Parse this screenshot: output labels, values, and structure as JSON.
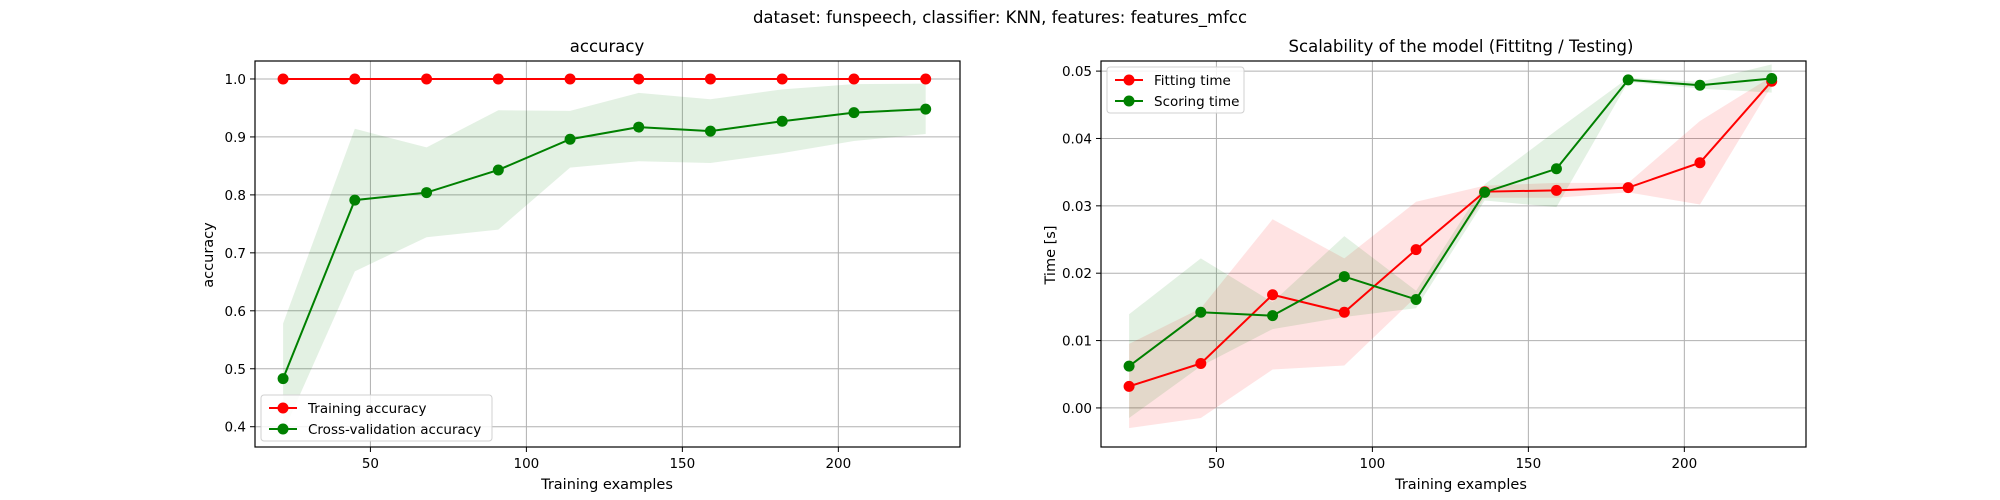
{
  "figure": {
    "suptitle": "dataset: funspeech, classifier: KNN, features: features_mfcc"
  },
  "chart_data": [
    {
      "type": "line",
      "title": "accuracy",
      "xlabel": "Training examples",
      "ylabel": "accuracy",
      "xlim": [
        13,
        239
      ],
      "ylim": [
        0.365,
        1.031
      ],
      "xticks": [
        50,
        100,
        150,
        200
      ],
      "yticks": [
        0.4,
        0.5,
        0.6,
        0.7,
        0.8,
        0.9,
        1.0
      ],
      "ytick_labels": [
        "0.4",
        "0.5",
        "0.6",
        "0.7",
        "0.8",
        "0.9",
        "1.0"
      ],
      "grid": true,
      "legend_position": "lower-left",
      "x": [
        22,
        45,
        68,
        91,
        114,
        136,
        159,
        182,
        205,
        228
      ],
      "series": [
        {
          "name": "Training accuracy",
          "color": "#ff0000",
          "values": [
            1.0,
            1.0,
            1.0,
            1.0,
            1.0,
            1.0,
            1.0,
            1.0,
            1.0,
            1.0
          ],
          "band_lower": [
            1.0,
            1.0,
            1.0,
            1.0,
            1.0,
            1.0,
            1.0,
            1.0,
            1.0,
            1.0
          ],
          "band_upper": [
            1.0,
            1.0,
            1.0,
            1.0,
            1.0,
            1.0,
            1.0,
            1.0,
            1.0,
            1.0
          ],
          "band_color": "#ff0000"
        },
        {
          "name": "Cross-validation accuracy",
          "color": "#008000",
          "values": [
            0.483,
            0.791,
            0.804,
            0.843,
            0.896,
            0.917,
            0.91,
            0.927,
            0.942,
            0.948
          ],
          "band_lower": [
            0.39,
            0.668,
            0.727,
            0.74,
            0.847,
            0.858,
            0.855,
            0.872,
            0.893,
            0.905
          ],
          "band_upper": [
            0.578,
            0.914,
            0.882,
            0.946,
            0.945,
            0.976,
            0.965,
            0.982,
            0.991,
            0.992
          ],
          "band_color": "#008000"
        }
      ]
    },
    {
      "type": "line",
      "title": "Scalability of the model (Fittitng / Testing)",
      "xlabel": "Training examples",
      "ylabel": "Time [s]",
      "xlim": [
        13,
        239
      ],
      "ylim": [
        -0.0058,
        0.0515
      ],
      "xticks": [
        50,
        100,
        150,
        200
      ],
      "yticks": [
        0.0,
        0.01,
        0.02,
        0.03,
        0.04,
        0.05
      ],
      "ytick_labels": [
        "0.00",
        "0.01",
        "0.02",
        "0.03",
        "0.04",
        "0.05"
      ],
      "grid": true,
      "legend_position": "upper-left",
      "x": [
        22,
        45,
        68,
        91,
        114,
        136,
        159,
        182,
        205,
        228
      ],
      "series": [
        {
          "name": "Fitting time",
          "color": "#ff0000",
          "values": [
            0.0032,
            0.0066,
            0.0168,
            0.0142,
            0.0235,
            0.0321,
            0.0323,
            0.0327,
            0.0364,
            0.0485
          ],
          "band_lower": [
            -0.003,
            -0.0015,
            0.0057,
            0.0063,
            0.0165,
            0.0312,
            0.0312,
            0.032,
            0.0302,
            0.0478
          ],
          "band_upper": [
            0.0095,
            0.0148,
            0.028,
            0.0222,
            0.0306,
            0.033,
            0.0334,
            0.0334,
            0.0426,
            0.0492
          ],
          "band_color": "#ff0000"
        },
        {
          "name": "Scoring time",
          "color": "#008000",
          "values": [
            0.0062,
            0.0142,
            0.0137,
            0.0195,
            0.0161,
            0.032,
            0.0355,
            0.0487,
            0.0479,
            0.0489
          ],
          "band_lower": [
            -0.0015,
            0.0062,
            0.0117,
            0.0135,
            0.0148,
            0.0308,
            0.0298,
            0.0484,
            0.0474,
            0.0468
          ],
          "band_upper": [
            0.0139,
            0.0222,
            0.0157,
            0.0255,
            0.0174,
            0.0332,
            0.0412,
            0.049,
            0.0484,
            0.051
          ],
          "band_color": "#008000"
        }
      ]
    }
  ]
}
